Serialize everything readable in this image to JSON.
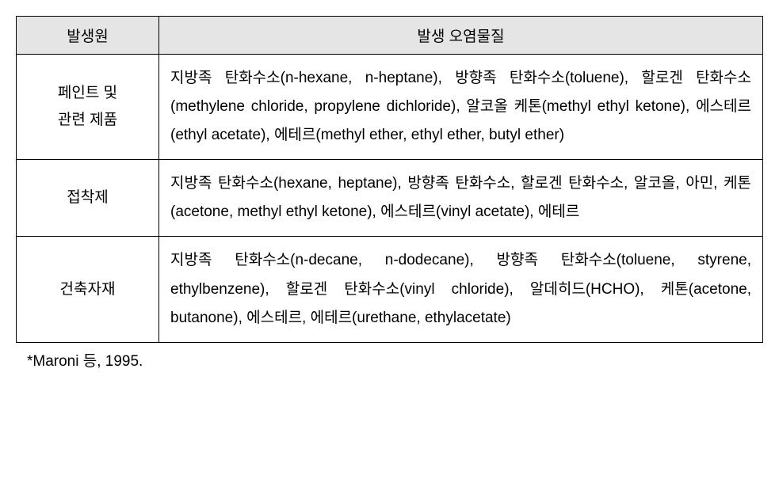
{
  "table": {
    "columns": [
      "발생원",
      "발생 오염물질"
    ],
    "column_widths": [
      "180px",
      "763px"
    ],
    "header_bg": "#e5e5e5",
    "border_color": "#000000",
    "font_size": 19,
    "line_height": 1.9,
    "rows": [
      {
        "source": "페인트 및\n관련 제품",
        "content": "지방족 탄화수소(n-hexane, n-heptane), 방향족 탄화수소(toluene), 할로겐 탄화수소(methylene chloride, propylene dichloride), 알코올 케톤(methyl ethyl ketone), 에스테르(ethyl acetate), 에테르(methyl ether, ethyl ether, butyl ether)"
      },
      {
        "source": "접착제",
        "content": "지방족 탄화수소(hexane, heptane), 방향족 탄화수소, 할로겐 탄화수소, 알코올, 아민, 케톤(acetone, methyl ethyl ketone), 에스테르(vinyl acetate), 에테르"
      },
      {
        "source": "건축자재",
        "content": "지방족 탄화수소(n-decane, n-dodecane), 방향족 탄화수소(toluene, styrene, ethylbenzene), 할로겐 탄화수소(vinyl chloride), 알데히드(HCHO), 케톤(acetone, butanone), 에스테르, 에테르(urethane, ethylacetate)"
      }
    ]
  },
  "footnote": "*Maroni 등, 1995."
}
